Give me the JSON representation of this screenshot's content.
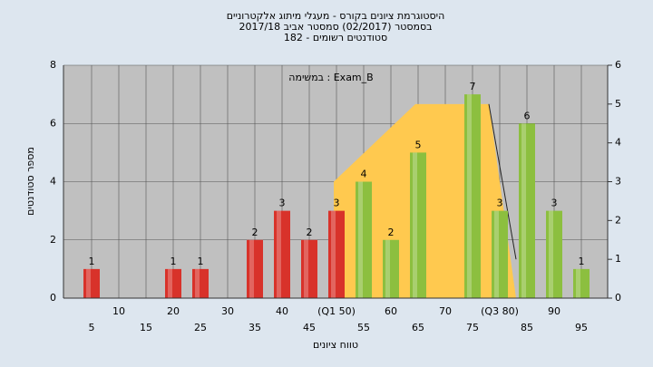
{
  "chart_data": {
    "type": "bar",
    "title": [
      "היסטוגרמת ציונים בקורס - מעגלי מיתוג אלקטרוניים",
      "בסמסטר  (02/2017)  סמסטר אביב 2017/18",
      "סטודנטים רשומים - 182"
    ],
    "annotation": "במשימה : Exam_B",
    "ylabel": "מספר סטודנטים",
    "xlabel": "טווח ציונים",
    "x": [
      5,
      10,
      15,
      20,
      25,
      30,
      35,
      40,
      45,
      50,
      55,
      60,
      65,
      70,
      75,
      80,
      85,
      90,
      95
    ],
    "values": [
      1,
      0,
      0,
      1,
      1,
      0,
      2,
      3,
      2,
      3,
      4,
      2,
      5,
      0,
      7,
      3,
      6,
      3,
      1
    ],
    "colors": [
      "#d8322a",
      "#d8322a",
      "#d8322a",
      "#d8322a",
      "#d8322a",
      "#d8322a",
      "#d8322a",
      "#d8322a",
      "#d8322a",
      "#d8322a",
      "#8cbf3f",
      "#8cbf3f",
      "#8cbf3f",
      "#8cbf3f",
      "#8cbf3f",
      "#8cbf3f",
      "#8cbf3f",
      "#8cbf3f",
      "#8cbf3f"
    ],
    "area": {
      "color": "#ffc94f",
      "x": [
        49.5,
        49.5,
        64.5,
        78,
        83
      ],
      "values": [
        0,
        3,
        5,
        5,
        0
      ],
      "axis": "y2"
    },
    "line": {
      "color": "#222222",
      "x": [
        78,
        83
      ],
      "values": [
        5,
        1
      ],
      "axis": "y2"
    },
    "xlim": [
      0,
      100
    ],
    "xticks": [
      5,
      10,
      15,
      20,
      25,
      30,
      35,
      40,
      45,
      {
        "value": 50,
        "label": "(Q1 50)"
      },
      55,
      60,
      65,
      70,
      75,
      {
        "value": 80,
        "label": "(Q3 80)"
      },
      85,
      90,
      95
    ],
    "ylim": [
      0,
      8
    ],
    "yticks": [
      0,
      2,
      4,
      6,
      8
    ],
    "y2lim": [
      0,
      6
    ],
    "y2ticks": [
      0,
      1,
      2,
      3,
      4,
      5,
      6
    ],
    "grid": true
  }
}
